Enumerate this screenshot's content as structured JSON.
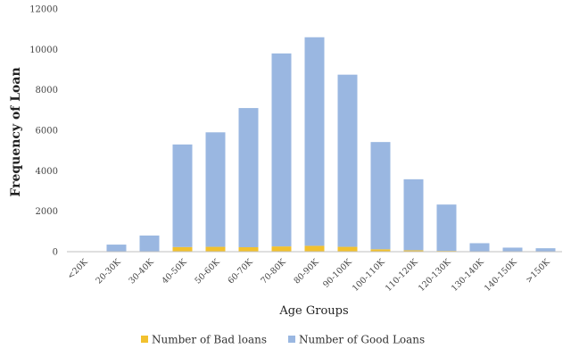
{
  "chart_data": {
    "type": "bar",
    "stacked": true,
    "title": "",
    "xlabel": "Age Groups",
    "ylabel": "Frequency of Loan",
    "ylim": [
      0,
      12000
    ],
    "yticks": [
      0,
      2000,
      4000,
      6000,
      8000,
      10000,
      12000
    ],
    "grid": false,
    "legend_position": "bottom",
    "categories": [
      "<20K",
      "20-30K",
      "30-40K",
      "40-50K",
      "50-60K",
      "60-70K",
      "70-80K",
      "80-90K",
      "90-100K",
      "100-110K",
      "110-120K",
      "120-130K",
      "130-140K",
      "140-150K",
      ">150K"
    ],
    "series": [
      {
        "name": "Number of Bad loans",
        "color": "#f2c12e",
        "values": [
          0,
          5,
          15,
          230,
          240,
          220,
          260,
          290,
          240,
          120,
          70,
          40,
          10,
          5,
          5
        ]
      },
      {
        "name": "Number of Good Loans",
        "color": "#9ab7e1",
        "values": [
          0,
          345,
          785,
          5070,
          5660,
          6880,
          9540,
          10310,
          8510,
          5300,
          3510,
          2290,
          410,
          195,
          165
        ]
      }
    ]
  }
}
